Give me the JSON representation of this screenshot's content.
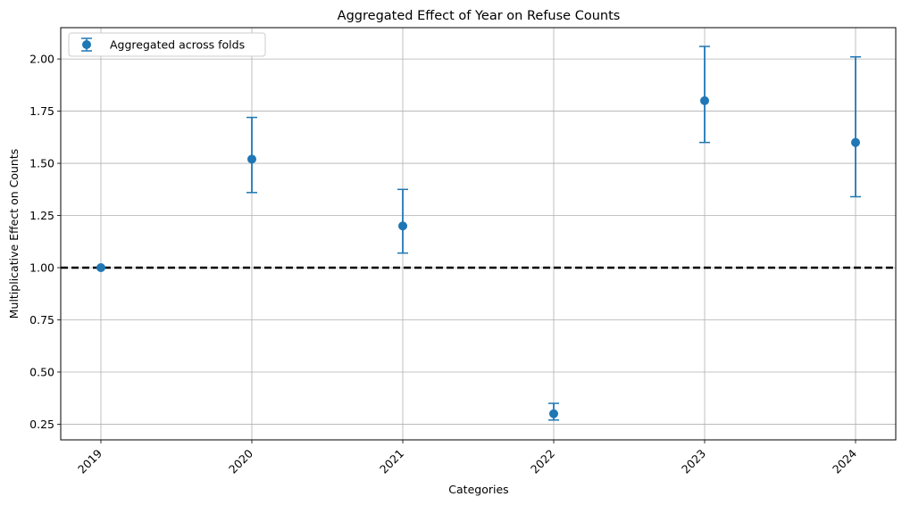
{
  "chart_data": {
    "type": "scatter",
    "title": "Aggregated Effect of Year on Refuse Counts",
    "xlabel": "Categories",
    "ylabel": "Multiplicative Effect on Counts",
    "categories": [
      "2019",
      "2020",
      "2021",
      "2022",
      "2023",
      "2024"
    ],
    "series": [
      {
        "name": "Aggregated across folds",
        "color": "#1f77b4",
        "values": [
          1.0,
          1.52,
          1.2,
          0.3,
          1.8,
          1.6
        ],
        "lower": [
          1.0,
          1.36,
          1.07,
          0.27,
          1.6,
          1.34
        ],
        "upper": [
          1.0,
          1.72,
          1.375,
          0.35,
          2.06,
          2.01
        ]
      }
    ],
    "reference_line": {
      "y": 1.0,
      "color": "#000000",
      "style": "dashed"
    },
    "ylim": [
      0.175,
      2.15
    ],
    "yticks": [
      0.25,
      0.5,
      0.75,
      1.0,
      1.25,
      1.5,
      1.75,
      2.0
    ],
    "ytick_labels": [
      "0.25",
      "0.50",
      "0.75",
      "1.00",
      "1.25",
      "1.50",
      "1.75",
      "2.00"
    ],
    "x_tick_rotation": 45,
    "grid": true,
    "legend_position": "top-left"
  }
}
